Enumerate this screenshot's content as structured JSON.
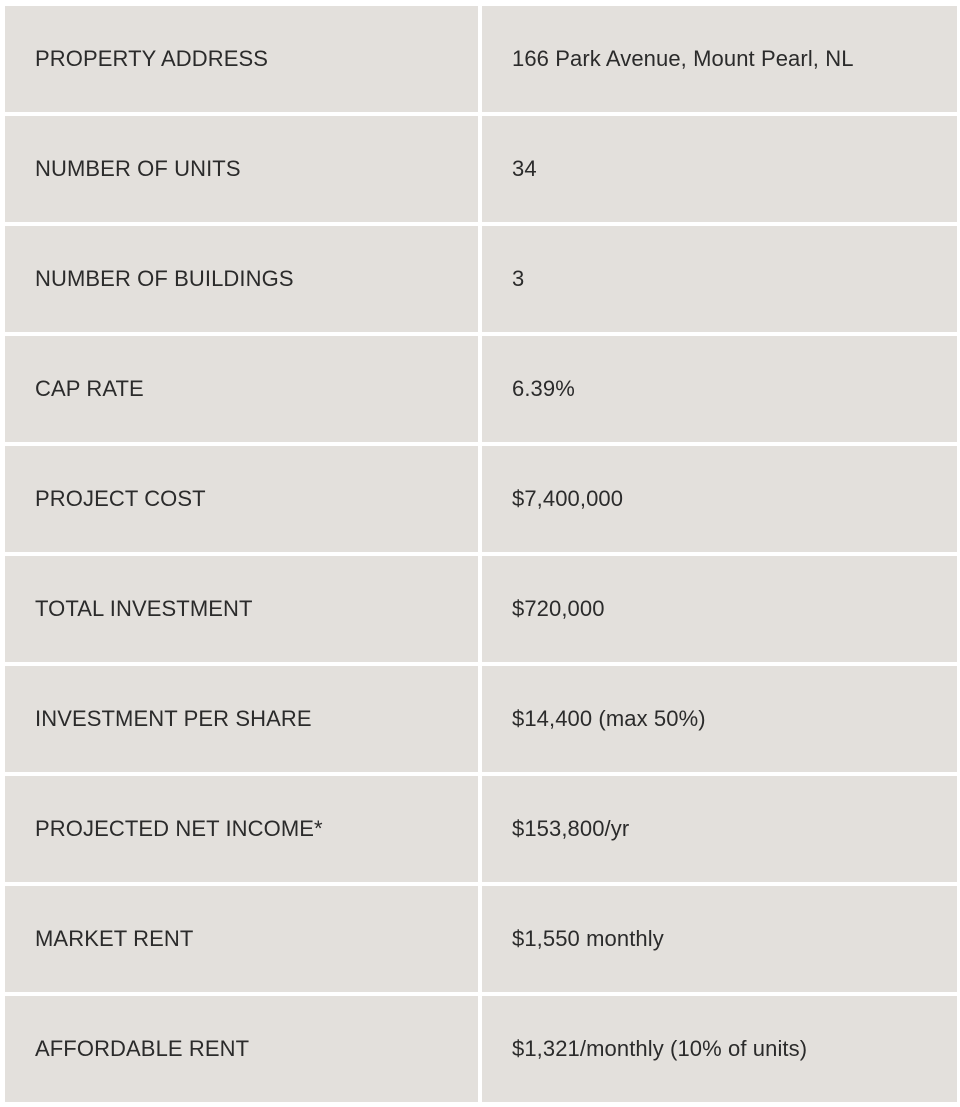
{
  "table": {
    "rows": [
      {
        "label": "PROPERTY ADDRESS",
        "value": "166 Park Avenue, Mount Pearl, NL"
      },
      {
        "label": "NUMBER OF UNITS",
        "value": "34"
      },
      {
        "label": "NUMBER OF BUILDINGS",
        "value": "3"
      },
      {
        "label": "CAP RATE",
        "value": "6.39%"
      },
      {
        "label": "PROJECT COST",
        "value": "$7,400,000"
      },
      {
        "label": "TOTAL INVESTMENT",
        "value": "$720,000"
      },
      {
        "label": "INVESTMENT PER SHARE",
        "value": "$14,400 (max 50%)"
      },
      {
        "label": "PROJECTED NET INCOME*",
        "value": "$153,800/yr"
      },
      {
        "label": "MARKET RENT",
        "value": "$1,550 monthly"
      },
      {
        "label": "AFFORDABLE RENT",
        "value": "$1,321/monthly (10% of units)"
      }
    ]
  },
  "colors": {
    "cell_background": "#e3e0dc",
    "text": "#2b2b2b",
    "gap": "#ffffff"
  }
}
